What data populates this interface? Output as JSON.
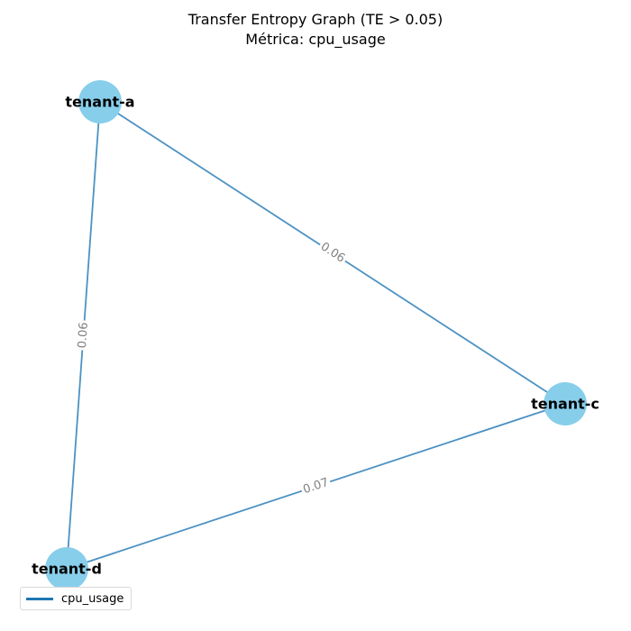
{
  "title": {
    "line1": "Transfer Entropy Graph (TE > 0.05)",
    "line2": "Métrica: cpu_usage"
  },
  "colors": {
    "node": "#87ceeb",
    "edge": "#1f77b4",
    "edge_label": "#808080"
  },
  "nodes": [
    {
      "id": "tenant-a",
      "label": "tenant-a"
    },
    {
      "id": "tenant-c",
      "label": "tenant-c"
    },
    {
      "id": "tenant-d",
      "label": "tenant-d"
    }
  ],
  "edges": [
    {
      "source": "tenant-a",
      "target": "tenant-c",
      "weight": "0.06"
    },
    {
      "source": "tenant-a",
      "target": "tenant-d",
      "weight": "0.06"
    },
    {
      "source": "tenant-d",
      "target": "tenant-c",
      "weight": "0.07"
    }
  ],
  "legend": {
    "label": "cpu_usage"
  }
}
